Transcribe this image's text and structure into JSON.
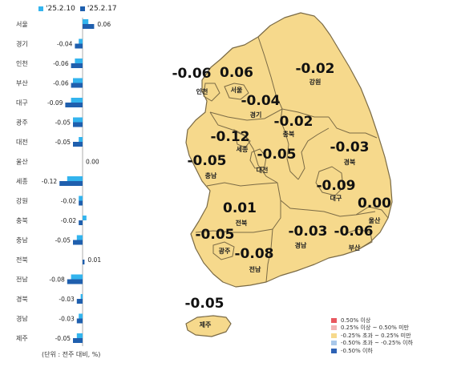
{
  "legend": {
    "prev_label": "'25.2.10",
    "curr_label": "'25.2.17",
    "prev_color": "#33b4ee",
    "curr_color": "#1f5fae"
  },
  "unit_note": "(단위 : 전주 대비, %)",
  "chart_data": {
    "type": "bar",
    "orientation": "horizontal",
    "categories": [
      "서울",
      "경기",
      "인천",
      "부산",
      "대구",
      "광주",
      "대전",
      "울산",
      "세종",
      "강원",
      "충북",
      "충남",
      "전북",
      "전남",
      "경북",
      "경남",
      "제주"
    ],
    "series": [
      {
        "name": "'25.2.10",
        "values": [
          0.03,
          -0.02,
          -0.04,
          -0.05,
          -0.06,
          -0.05,
          -0.02,
          0.0,
          -0.08,
          -0.02,
          0.02,
          -0.03,
          0.0,
          -0.06,
          -0.01,
          -0.02,
          -0.03
        ]
      },
      {
        "name": "'25.2.17",
        "values": [
          0.06,
          -0.04,
          -0.06,
          -0.06,
          -0.09,
          -0.05,
          -0.05,
          0.0,
          -0.12,
          -0.02,
          -0.02,
          -0.05,
          0.01,
          -0.08,
          -0.03,
          -0.03,
          -0.05
        ]
      }
    ],
    "value_labels": [
      "0.06",
      "-0.04",
      "-0.06",
      "-0.06",
      "-0.09",
      "-0.05",
      "-0.05",
      "0.00",
      "-0.12",
      "-0.02",
      "-0.02",
      "-0.05",
      "0.01",
      "-0.08",
      "-0.03",
      "-0.03",
      "-0.05"
    ],
    "xlim": [
      -0.13,
      0.08
    ]
  },
  "map": {
    "fill_color": "#f6d98c",
    "border_color": "#7a6a45",
    "regions": [
      {
        "name": "인천",
        "value": "-0.06"
      },
      {
        "name": "서울",
        "value": "0.06"
      },
      {
        "name": "경기",
        "value": "-0.04"
      },
      {
        "name": "강원",
        "value": "-0.02"
      },
      {
        "name": "충북",
        "value": "-0.02"
      },
      {
        "name": "세종",
        "value": "-0.12"
      },
      {
        "name": "충남",
        "value": "-0.05"
      },
      {
        "name": "대전",
        "value": "-0.05"
      },
      {
        "name": "경북",
        "value": "-0.03"
      },
      {
        "name": "대구",
        "value": "-0.09"
      },
      {
        "name": "전북",
        "value": "0.01"
      },
      {
        "name": "울산",
        "value": "0.00"
      },
      {
        "name": "광주",
        "value": "-0.05"
      },
      {
        "name": "전남",
        "value": "-0.08"
      },
      {
        "name": "경남",
        "value": "-0.03"
      },
      {
        "name": "부산",
        "value": "-0.06"
      },
      {
        "name": "제주",
        "value": "-0.05"
      }
    ]
  },
  "map_legend": [
    {
      "label": "0.50% 이상",
      "color": "#e8585f"
    },
    {
      "label": "0.25% 이상 ~ 0.50% 미만",
      "color": "#f2b5b5"
    },
    {
      "label": "-0.25% 초과 ~ 0.25% 미만",
      "color": "#f6d98c"
    },
    {
      "label": "-0.50% 초과 ~ -0.25% 이하",
      "color": "#a9c8ea"
    },
    {
      "label": "-0.50% 이하",
      "color": "#2d62b5"
    }
  ]
}
